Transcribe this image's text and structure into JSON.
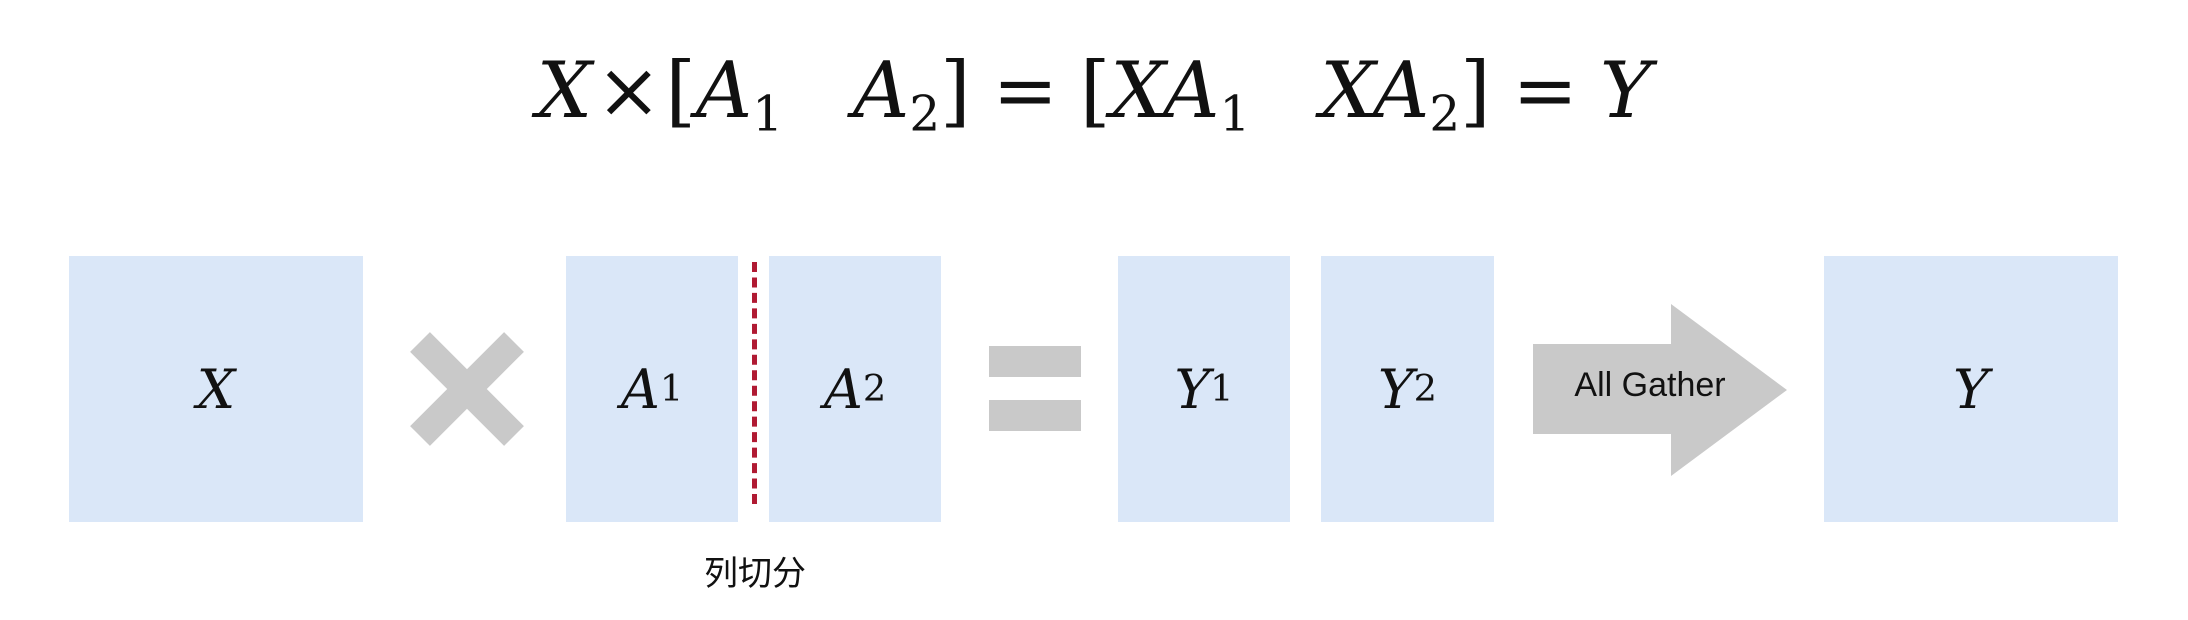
{
  "formula": {
    "x": "X",
    "times": "×",
    "lbracket": "[",
    "rbracket": "]",
    "a": "A",
    "sub1": "1",
    "sub2": "2",
    "xa": "XA",
    "equals": "=",
    "y": "Y"
  },
  "blocks": {
    "x": {
      "label": "X",
      "sub": ""
    },
    "a1": {
      "label": "A",
      "sub": "1"
    },
    "a2": {
      "label": "A",
      "sub": "2"
    },
    "y1": {
      "label": "Y",
      "sub": "1"
    },
    "y2": {
      "label": "Y",
      "sub": "2"
    },
    "y": {
      "label": "Y",
      "sub": ""
    }
  },
  "split_label": "列切分",
  "arrow_label": "All Gather",
  "colors": {
    "block_fill": "#dae7f8",
    "operator_gray": "#c9c9c9",
    "split_line": "#b01a33"
  }
}
